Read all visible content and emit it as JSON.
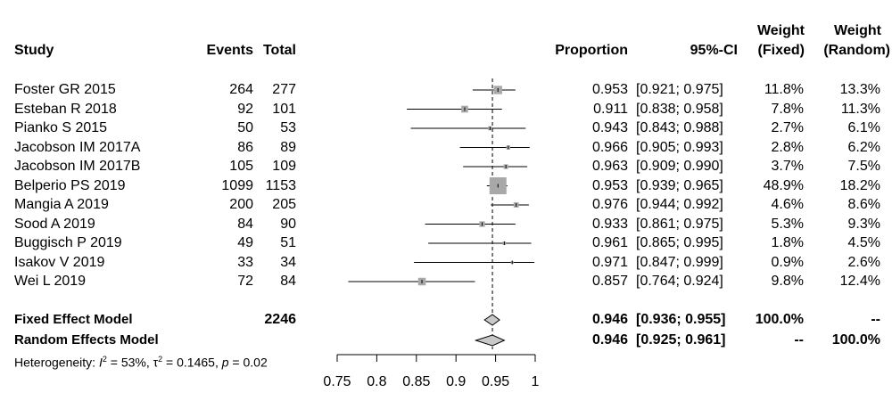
{
  "headers": {
    "study": "Study",
    "events": "Events",
    "total": "Total",
    "proportion": "Proportion",
    "ci": "95%-CI",
    "weight_fixed_1": "Weight",
    "weight_fixed_2": "(Fixed)",
    "weight_random_1": "Weight",
    "weight_random_2": "(Random)"
  },
  "rows": [
    {
      "study": "Foster GR 2015",
      "events": "264",
      "total": "277",
      "prop": "0.953",
      "ci": "[0.921; 0.975]",
      "wf": "11.8%",
      "wr": "13.3%"
    },
    {
      "study": "Esteban R 2018",
      "events": "92",
      "total": "101",
      "prop": "0.911",
      "ci": "[0.838; 0.958]",
      "wf": "7.8%",
      "wr": "11.3%"
    },
    {
      "study": "Pianko S 2015",
      "events": "50",
      "total": "53",
      "prop": "0.943",
      "ci": "[0.843; 0.988]",
      "wf": "2.7%",
      "wr": "6.1%"
    },
    {
      "study": "Jacobson IM 2017A",
      "events": "86",
      "total": "89",
      "prop": "0.966",
      "ci": "[0.905; 0.993]",
      "wf": "2.8%",
      "wr": "6.2%"
    },
    {
      "study": "Jacobson IM 2017B",
      "events": "105",
      "total": "109",
      "prop": "0.963",
      "ci": "[0.909; 0.990]",
      "wf": "3.7%",
      "wr": "7.5%"
    },
    {
      "study": "Belperio PS 2019",
      "events": "1099",
      "total": "1153",
      "prop": "0.953",
      "ci": "[0.939; 0.965]",
      "wf": "48.9%",
      "wr": "18.2%"
    },
    {
      "study": "Mangia A 2019",
      "events": "200",
      "total": "205",
      "prop": "0.976",
      "ci": "[0.944; 0.992]",
      "wf": "4.6%",
      "wr": "8.6%"
    },
    {
      "study": "Sood A 2019",
      "events": "84",
      "total": "90",
      "prop": "0.933",
      "ci": "[0.861; 0.975]",
      "wf": "5.3%",
      "wr": "9.3%"
    },
    {
      "study": "Buggisch P 2019",
      "events": "49",
      "total": "51",
      "prop": "0.961",
      "ci": "[0.865; 0.995]",
      "wf": "1.8%",
      "wr": "4.5%"
    },
    {
      "study": "Isakov V 2019",
      "events": "33",
      "total": "34",
      "prop": "0.971",
      "ci": "[0.847; 0.999]",
      "wf": "0.9%",
      "wr": "2.6%"
    },
    {
      "study": "Wei L 2019",
      "events": "72",
      "total": "84",
      "prop": "0.857",
      "ci": "[0.764; 0.924]",
      "wf": "9.8%",
      "wr": "12.4%"
    }
  ],
  "summary": {
    "fixed": {
      "label": "Fixed Effect Model",
      "total": "2246",
      "prop": "0.946",
      "ci": "[0.936; 0.955]",
      "wf": "100.0%",
      "wr": "--"
    },
    "random": {
      "label": "Random Effects Model",
      "prop": "0.946",
      "ci": "[0.925; 0.961]",
      "wf": "--",
      "wr": "100.0%"
    }
  },
  "heterogeneity": {
    "prefix": "Heterogeneity: ",
    "i2_sym": "I",
    "i2_sup": "2",
    "i2_val": " = 53%, ",
    "tau_sym": "τ",
    "tau_sup": "2",
    "tau_val": " = 0.1465, ",
    "p_sym": "p",
    "p_val": " = 0.02"
  },
  "chart_data": {
    "type": "forest",
    "xlim": [
      0.75,
      1.0
    ],
    "ticks": [
      0.75,
      0.8,
      0.85,
      0.9,
      0.95,
      1.0
    ],
    "tick_labels": [
      "0.75",
      "0.8",
      "0.85",
      "0.9",
      "0.95",
      "1"
    ],
    "reference_line": 0.946,
    "studies": [
      {
        "study": "Foster GR 2015",
        "estimate": 0.953,
        "lower": 0.921,
        "upper": 0.975,
        "weight_fixed": 11.8
      },
      {
        "study": "Esteban R 2018",
        "estimate": 0.911,
        "lower": 0.838,
        "upper": 0.958,
        "weight_fixed": 7.8
      },
      {
        "study": "Pianko S 2015",
        "estimate": 0.943,
        "lower": 0.843,
        "upper": 0.988,
        "weight_fixed": 2.7
      },
      {
        "study": "Jacobson IM 2017A",
        "estimate": 0.966,
        "lower": 0.905,
        "upper": 0.993,
        "weight_fixed": 2.8
      },
      {
        "study": "Jacobson IM 2017B",
        "estimate": 0.963,
        "lower": 0.909,
        "upper": 0.99,
        "weight_fixed": 3.7
      },
      {
        "study": "Belperio PS 2019",
        "estimate": 0.953,
        "lower": 0.939,
        "upper": 0.965,
        "weight_fixed": 48.9
      },
      {
        "study": "Mangia A 2019",
        "estimate": 0.976,
        "lower": 0.944,
        "upper": 0.992,
        "weight_fixed": 4.6
      },
      {
        "study": "Sood A 2019",
        "estimate": 0.933,
        "lower": 0.861,
        "upper": 0.975,
        "weight_fixed": 5.3
      },
      {
        "study": "Buggisch P 2019",
        "estimate": 0.961,
        "lower": 0.865,
        "upper": 0.995,
        "weight_fixed": 1.8
      },
      {
        "study": "Isakov V 2019",
        "estimate": 0.971,
        "lower": 0.847,
        "upper": 0.999,
        "weight_fixed": 0.9
      },
      {
        "study": "Wei L 2019",
        "estimate": 0.857,
        "lower": 0.764,
        "upper": 0.924,
        "weight_fixed": 9.8
      }
    ],
    "pooled": [
      {
        "model": "Fixed Effect Model",
        "estimate": 0.946,
        "lower": 0.936,
        "upper": 0.955
      },
      {
        "model": "Random Effects Model",
        "estimate": 0.946,
        "lower": 0.925,
        "upper": 0.961
      }
    ],
    "colors": {
      "box": "#a8a8a8",
      "diamond": "#c8c8c8",
      "line": "#000000"
    }
  }
}
